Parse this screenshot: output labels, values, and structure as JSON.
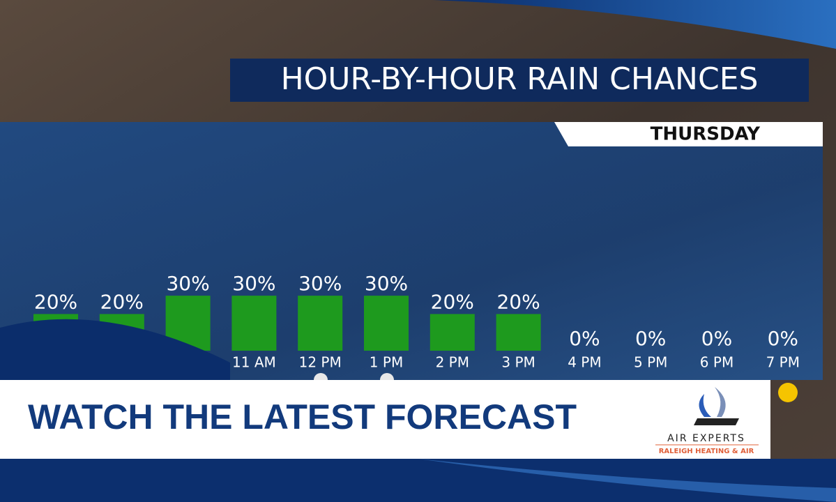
{
  "chart_data": {
    "type": "bar",
    "title": "HOUR-BY-HOUR RAIN CHANCES",
    "subtitle": "THURSDAY",
    "categories": [
      null,
      null,
      null,
      "11 AM",
      "12 PM",
      "1 PM",
      "2 PM",
      "3 PM",
      "4 PM",
      "5 PM",
      "6 PM",
      "7 PM"
    ],
    "values": [
      20,
      20,
      30,
      30,
      30,
      30,
      20,
      20,
      0,
      0,
      0,
      0
    ],
    "value_labels": [
      "20%",
      "20%",
      "30%",
      "30%",
      "30%",
      "30%",
      "20%",
      "20%",
      "0%",
      "0%",
      "0%",
      "0%"
    ],
    "color": "#1e9a1e"
  },
  "banner": "WATCH THE LATEST FORECAST",
  "sponsor": {
    "name": "AIR EXPERTS",
    "tagline": "RALEIGH HEATING & AIR"
  }
}
